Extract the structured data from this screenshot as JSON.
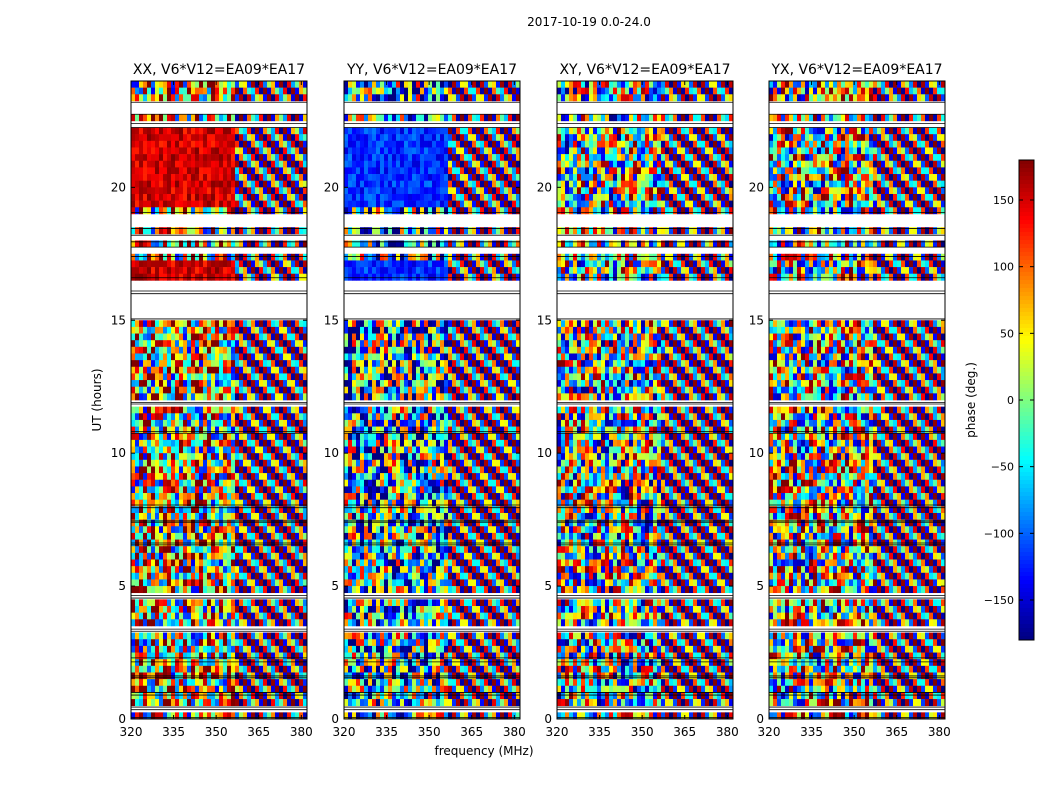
{
  "figure": {
    "suptitle": "2017-10-19 0.0-24.0"
  },
  "chart_data": {
    "type": "heatmap",
    "title": "2017-10-19 0.0-24.0",
    "xlabel": "frequency (MHz)",
    "ylabel": "UT (hours)",
    "xlim": [
      320,
      382
    ],
    "ylim": [
      0,
      24
    ],
    "xticks": [
      320,
      335,
      350,
      365,
      380
    ],
    "yticks": [
      0,
      5,
      10,
      15,
      20
    ],
    "panels": [
      {
        "title": "XX, V6*V12=EA09*EA17",
        "mode": "parallel",
        "bias": 1
      },
      {
        "title": "YY, V6*V12=EA09*EA17",
        "mode": "parallel",
        "bias": -1
      },
      {
        "title": "XY, V6*V12=EA09*EA17",
        "mode": "cross",
        "bias": 0
      },
      {
        "title": "YX, V6*V12=EA09*EA17",
        "mode": "cross",
        "bias": 0.4
      }
    ],
    "flagged_ut_ranges": [
      [
        0.0,
        0.05
      ],
      [
        0.35,
        0.45
      ],
      [
        0.9,
        1.0
      ],
      [
        1.55,
        1.62
      ],
      [
        2.15,
        2.3
      ],
      [
        3.3,
        3.38
      ],
      [
        4.55,
        4.65
      ],
      [
        6.55,
        6.62
      ],
      [
        7.4,
        7.45
      ],
      [
        7.95,
        8.05
      ],
      [
        10.75,
        10.82
      ],
      [
        11.85,
        11.9
      ],
      [
        15.05,
        16.0
      ],
      [
        16.1,
        16.6
      ],
      [
        17.4,
        17.75
      ],
      [
        17.95,
        18.2
      ],
      [
        18.45,
        19.05
      ],
      [
        22.25,
        22.4
      ],
      [
        22.75,
        23.2
      ],
      [
        24.0,
        24.0
      ]
    ],
    "colorbar": {
      "label": "phase (deg.)",
      "range": [
        -180,
        180
      ],
      "ticks": [
        -150,
        -100,
        -50,
        0,
        50,
        100,
        150
      ],
      "tick_labels": [
        "−150",
        "−100",
        "−50",
        "0",
        "50",
        "100",
        "150"
      ],
      "colormap": "jet"
    }
  }
}
